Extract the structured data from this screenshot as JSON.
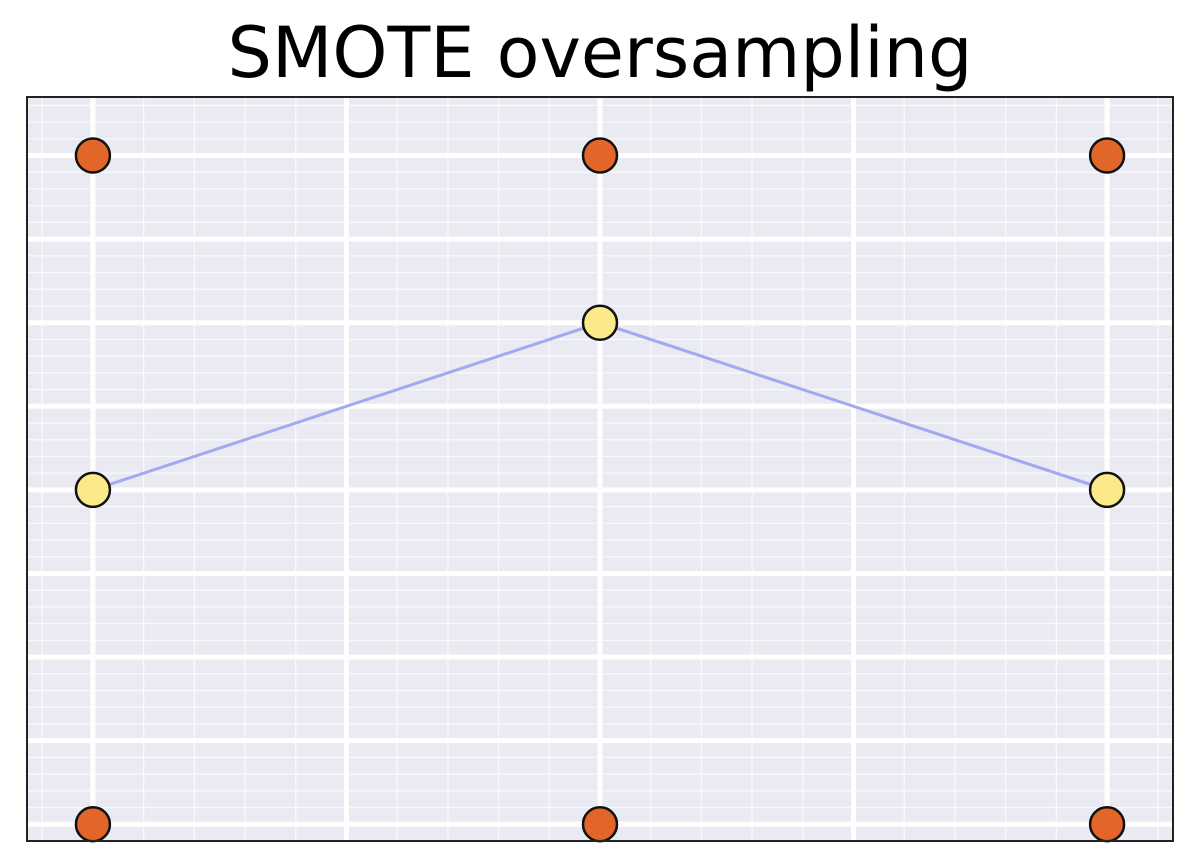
{
  "chart_data": {
    "type": "scatter",
    "title": "SMOTE oversampling",
    "xlabel": "",
    "ylabel": "",
    "xlim": [
      -0.13,
      2.13
    ],
    "ylim": [
      -0.1,
      4.35
    ],
    "grid": true,
    "legend": "none",
    "colors": {
      "background": "#eaeaf2",
      "grid": "#ffffff",
      "majority": "#e2652a",
      "minority": "#fbe98a",
      "marker_edge": "#111111",
      "connection": "#a3a8ef"
    },
    "series": [
      {
        "points": [
          {
            "x": 0,
            "y": 4
          },
          {
            "x": 1,
            "y": 4
          },
          {
            "x": 2,
            "y": 4
          },
          {
            "x": 0,
            "y": 0
          },
          {
            "x": 1,
            "y": 0
          },
          {
            "x": 2,
            "y": 0
          }
        ]
      },
      {
        "points": [
          {
            "x": 0,
            "y": 2
          },
          {
            "x": 1,
            "y": 3
          },
          {
            "x": 2,
            "y": 2
          }
        ]
      }
    ],
    "connections": [
      {
        "from": {
          "x": 0,
          "y": 2
        },
        "to": {
          "x": 1,
          "y": 3
        }
      },
      {
        "from": {
          "x": 1,
          "y": 3
        },
        "to": {
          "x": 2,
          "y": 2
        }
      }
    ]
  }
}
